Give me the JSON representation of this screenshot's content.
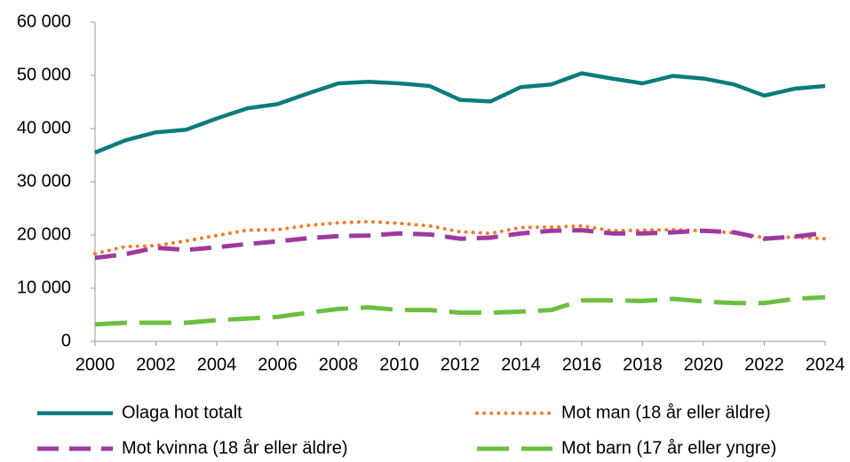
{
  "chart_data": {
    "type": "line",
    "x": [
      2000,
      2001,
      2002,
      2003,
      2004,
      2005,
      2006,
      2007,
      2008,
      2009,
      2010,
      2011,
      2012,
      2013,
      2014,
      2015,
      2016,
      2017,
      2018,
      2019,
      2020,
      2021,
      2022,
      2023,
      2024
    ],
    "series": [
      {
        "name": "Olaga hot totalt",
        "color": "#0a7b7b",
        "style": "solid",
        "values": [
          35500,
          37800,
          39300,
          39800,
          41900,
          43800,
          44600,
          46600,
          48500,
          48800,
          48500,
          48000,
          45400,
          45100,
          47800,
          48300,
          50400,
          49400,
          48500,
          49900,
          49400,
          48300,
          46200,
          47500,
          48000
        ]
      },
      {
        "name": "Mot man (18 år eller äldre)",
        "color": "#ed7d31",
        "style": "dotted",
        "values": [
          16500,
          17800,
          18000,
          18900,
          19900,
          20900,
          21000,
          21800,
          22300,
          22500,
          22200,
          21700,
          20600,
          20300,
          21400,
          21500,
          21700,
          20800,
          20900,
          21000,
          20800,
          20400,
          19500,
          19600,
          19300
        ]
      },
      {
        "name": "Mot kvinna (18 år eller äldre)",
        "color": "#9e3a9e",
        "style": "dashed",
        "values": [
          15700,
          16400,
          17600,
          17200,
          17700,
          18300,
          18800,
          19400,
          19800,
          19900,
          20300,
          20100,
          19300,
          19500,
          20300,
          20800,
          20900,
          20300,
          20300,
          20500,
          20800,
          20500,
          19300,
          19700,
          20400
        ]
      },
      {
        "name": "Mot barn (17 år eller yngre)",
        "color": "#6cbf3f",
        "style": "longdash",
        "values": [
          3200,
          3500,
          3500,
          3500,
          4000,
          4300,
          4600,
          5400,
          6100,
          6400,
          5900,
          5900,
          5400,
          5400,
          5600,
          5900,
          7700,
          7700,
          7600,
          8000,
          7500,
          7200,
          7200,
          8000,
          8300
        ]
      }
    ],
    "xlim": [
      2000,
      2024
    ],
    "xticks": [
      2000,
      2002,
      2004,
      2006,
      2008,
      2010,
      2012,
      2014,
      2016,
      2018,
      2020,
      2022,
      2024
    ],
    "ylim": [
      0,
      60000
    ],
    "yticks": [
      0,
      {
        "value": 10000,
        "label": "10 000"
      },
      {
        "value": 20000,
        "label": "20 000"
      },
      {
        "value": 30000,
        "label": "30 000"
      },
      {
        "value": 40000,
        "label": "40 000"
      },
      {
        "value": 50000,
        "label": "50 000"
      },
      {
        "value": 60000,
        "label": "60 000"
      }
    ],
    "grid": false,
    "legend": "bottom"
  }
}
